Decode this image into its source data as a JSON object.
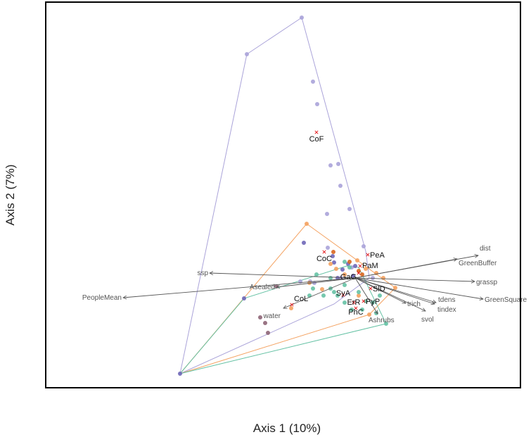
{
  "chart_data": {
    "type": "scatter",
    "title": "",
    "xlabel": "Axis 1 (10%)",
    "ylabel": "Axis 2 (7%)",
    "xlim": [
      -4.4,
      2.35
    ],
    "ylim": [
      -1.56,
      3.92
    ],
    "grid": false,
    "ticks": false,
    "groups": [
      {
        "color": "#aaa3d9",
        "points": [
          [
            -0.76,
            3.7
          ],
          [
            -1.54,
            3.18
          ],
          [
            -0.6,
            2.79
          ],
          [
            -0.54,
            2.47
          ],
          [
            -0.35,
            1.6
          ],
          [
            -0.24,
            1.62
          ],
          [
            -0.21,
            1.31
          ],
          [
            -0.08,
            0.98
          ],
          [
            -0.4,
            0.91
          ],
          [
            0.12,
            0.45
          ],
          [
            -0.39,
            0.43
          ],
          [
            -0.78,
            -0.05
          ],
          [
            -0.64,
            -0.05
          ],
          [
            -0.58,
            -0.07
          ],
          [
            -0.05,
            0.15
          ],
          [
            -0.2,
            0.0
          ],
          [
            0.25,
            0.0
          ]
        ],
        "hull": [
          [
            -2.49,
            -1.36
          ],
          [
            -1.54,
            3.18
          ],
          [
            -0.76,
            3.7
          ],
          [
            0.15,
            0.38
          ],
          [
            0.2,
            0.0
          ],
          [
            -0.3,
            -0.37
          ]
        ]
      },
      {
        "color": "#6f67b8",
        "points": [
          [
            -0.73,
            0.5
          ],
          [
            -0.32,
            0.31
          ],
          [
            -0.3,
            0.22
          ],
          [
            -0.18,
            0.12
          ],
          [
            -0.1,
            0.2
          ],
          [
            0.0,
            0.17
          ],
          [
            -1.58,
            -0.29
          ],
          [
            -2.49,
            -1.36
          ],
          [
            -0.25,
            0.0
          ],
          [
            -0.03,
            0.03
          ]
        ],
        "hull": []
      },
      {
        "color": "#f4a261",
        "points": [
          [
            -0.69,
            0.77
          ],
          [
            0.57,
            -0.14
          ],
          [
            0.05,
            -0.25
          ],
          [
            -0.65,
            -0.07
          ],
          [
            -0.47,
            -0.16
          ],
          [
            -0.91,
            -0.43
          ],
          [
            -0.35,
            0.2
          ],
          [
            -0.27,
            0.13
          ],
          [
            0.15,
            0.13
          ],
          [
            0.3,
            0.07
          ],
          [
            0.4,
            0.0
          ],
          [
            0.2,
            -0.52
          ],
          [
            -0.15,
            0.05
          ],
          [
            0.03,
            0.25
          ]
        ],
        "hull": [
          [
            -2.49,
            -1.36
          ],
          [
            -0.69,
            0.77
          ],
          [
            0.57,
            -0.14
          ],
          [
            0.2,
            -0.52
          ]
        ]
      },
      {
        "color": "#d9661f",
        "points": [
          [
            -0.31,
            0.37
          ],
          [
            -0.08,
            0.23
          ],
          [
            0.05,
            0.1
          ],
          [
            0.1,
            0.05
          ]
        ],
        "hull": []
      },
      {
        "color": "#66c2a5",
        "points": [
          [
            0.44,
            -0.65
          ],
          [
            0.3,
            -0.5
          ],
          [
            -0.15,
            -0.1
          ],
          [
            -0.35,
            -0.15
          ],
          [
            -0.6,
            -0.15
          ],
          [
            -0.55,
            0.05
          ],
          [
            -0.45,
            -0.25
          ],
          [
            -0.3,
            -0.2
          ],
          [
            -0.15,
            -0.35
          ],
          [
            -0.05,
            -0.45
          ],
          [
            0.1,
            -0.45
          ],
          [
            0.15,
            -0.33
          ],
          [
            -0.25,
            -0.25
          ],
          [
            -0.65,
            -0.25
          ],
          [
            -0.08,
            0.15
          ],
          [
            0.35,
            -0.25
          ],
          [
            0.25,
            -0.35
          ],
          [
            0.05,
            -0.2
          ],
          [
            -0.15,
            0.23
          ],
          [
            -0.35,
            0.0
          ]
        ],
        "hull": [
          [
            -2.49,
            -1.36
          ],
          [
            -1.58,
            -0.29
          ],
          [
            -0.12,
            0.17
          ],
          [
            0.05,
            0.15
          ],
          [
            0.44,
            -0.65
          ]
        ]
      },
      {
        "color": "#8e6577",
        "points": [
          [
            -1.35,
            -0.56
          ],
          [
            -1.28,
            -0.64
          ],
          [
            -1.24,
            -0.78
          ],
          [
            -1.12,
            -0.12
          ]
        ],
        "hull": []
      }
    ],
    "centroids": [
      {
        "label": "CoF",
        "x": -0.55,
        "y": 2.07,
        "side": "below"
      },
      {
        "label": "CoC",
        "x": -0.44,
        "y": 0.37,
        "side": "below"
      },
      {
        "label": "CoL",
        "x": -0.9,
        "y": -0.38,
        "side": "above-right"
      },
      {
        "label": "PeA",
        "x": 0.18,
        "y": 0.33,
        "side": "right"
      },
      {
        "label": "PaM",
        "x": 0.07,
        "y": 0.17,
        "side": "right"
      },
      {
        "label": "GaG",
        "x": 0.05,
        "y": 0.07,
        "side": "center"
      },
      {
        "label": "SlD",
        "x": 0.22,
        "y": -0.15,
        "side": "right"
      },
      {
        "label": "SyA",
        "x": -0.17,
        "y": -0.24,
        "side": "center"
      },
      {
        "label": "ErR",
        "x": -0.02,
        "y": -0.35,
        "side": "center"
      },
      {
        "label": "PyP",
        "x": 0.12,
        "y": -0.33,
        "side": "right"
      },
      {
        "label": "PhC",
        "x": 0.01,
        "y": -0.43,
        "side": "center"
      }
    ],
    "vectors": [
      {
        "label": "dist",
        "x": 1.75,
        "y": 0.32,
        "side": "above"
      },
      {
        "label": "GreenBuffer",
        "x": 1.45,
        "y": 0.27,
        "side": "right"
      },
      {
        "label": "grassp",
        "x": 1.7,
        "y": -0.05,
        "side": "right"
      },
      {
        "label": "GreenSquare",
        "x": 1.82,
        "y": -0.3,
        "side": "right"
      },
      {
        "label": "tdens",
        "x": 1.15,
        "y": -0.35,
        "side": "right"
      },
      {
        "label": "tindex",
        "x": 1.13,
        "y": -0.37,
        "side": "right-low"
      },
      {
        "label": "trich",
        "x": 0.72,
        "y": -0.36,
        "side": "right"
      },
      {
        "label": "svol",
        "x": 1.0,
        "y": -0.47,
        "side": "right-low"
      },
      {
        "label": "Ashrubs",
        "x": 0.32,
        "y": -0.51,
        "side": "below"
      },
      {
        "label": "water",
        "x": -1.02,
        "y": -0.43,
        "side": "left-low"
      },
      {
        "label": "Asealed",
        "x": -1.12,
        "y": -0.13,
        "side": "left"
      },
      {
        "label": "ssp",
        "x": -2.07,
        "y": 0.07,
        "side": "left"
      },
      {
        "label": "PeopleMean",
        "x": -3.3,
        "y": -0.28,
        "side": "left"
      }
    ],
    "colors": {
      "vector": "#555555",
      "centroid_marker": "#e41a1c",
      "frame": "#000000"
    }
  }
}
